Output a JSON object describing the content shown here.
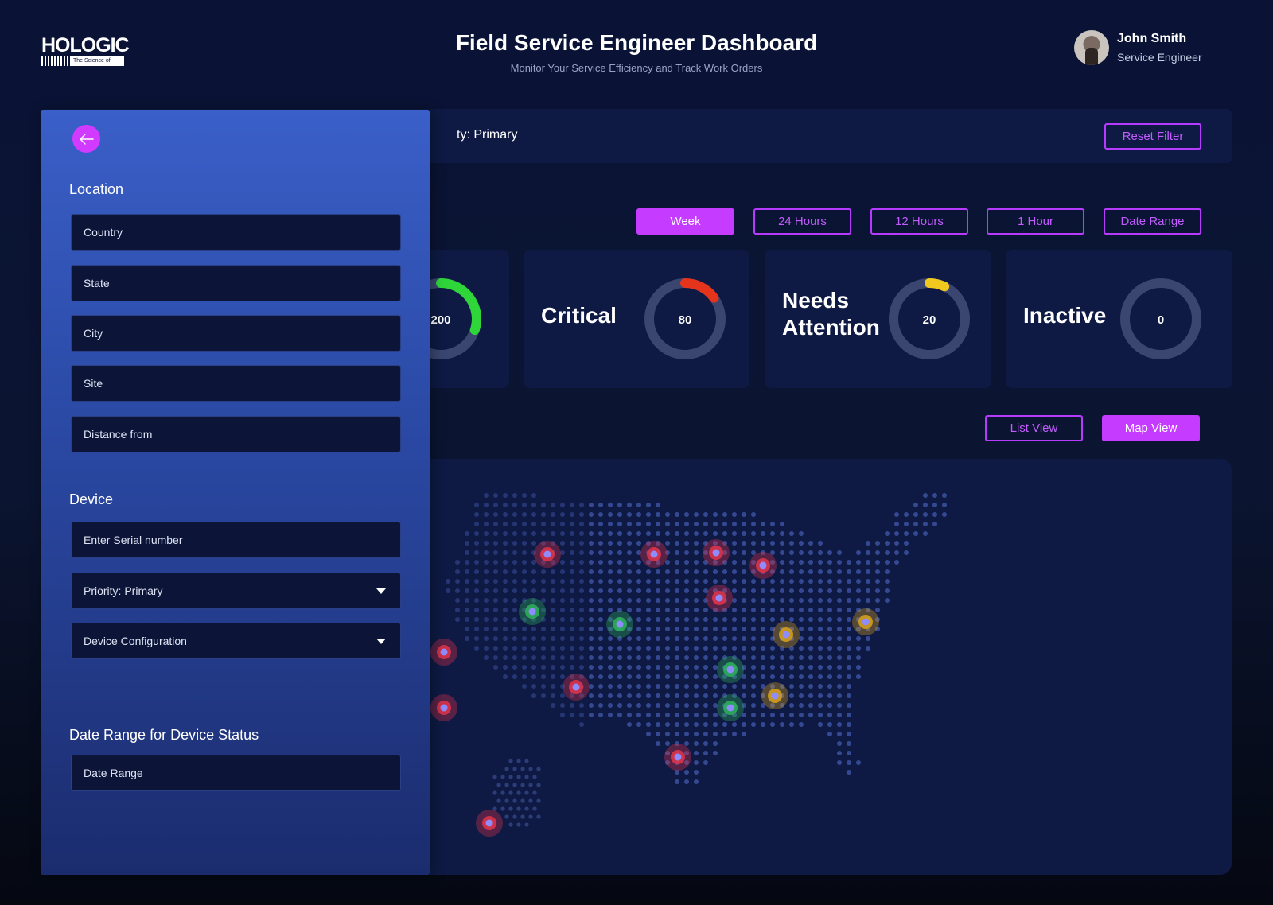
{
  "header": {
    "logo_text": "HOLOGIC",
    "logo_tagline": "The Science of Sure",
    "title": "Field Service Engineer Dashboard",
    "subtitle": "Monitor Your Service Efficiency and Track Work Orders"
  },
  "user": {
    "name": "John Smith",
    "role": "Service Engineer"
  },
  "filter_bar": {
    "applied_filter_text": "ty: Primary",
    "reset_label": "Reset Filter"
  },
  "time_filters": [
    {
      "label": "Week",
      "active": true
    },
    {
      "label": "24 Hours",
      "active": false
    },
    {
      "label": "12 Hours",
      "active": false
    },
    {
      "label": "1 Hour",
      "active": false
    },
    {
      "label": "Date Range",
      "active": false
    }
  ],
  "status_cards": [
    {
      "label": "",
      "value": "200",
      "fraction": 0.3,
      "color": "#2fd63a"
    },
    {
      "label": "Critical",
      "value": "80",
      "fraction": 0.15,
      "color": "#e4341c"
    },
    {
      "label": "Needs Attention",
      "value": "20",
      "fraction": 0.07,
      "color": "#f0c81e"
    },
    {
      "label": "Inactive",
      "value": "0",
      "fraction": 0,
      "color": "#f0c81e"
    }
  ],
  "view_toggle": {
    "list_label": "List View",
    "map_label": "Map View",
    "active": "map"
  },
  "map": {
    "marker_colors": {
      "critical": "#e0354a",
      "normal": "#2fb35a",
      "attention": "#d9a21c",
      "core": "#8f8cff"
    },
    "markers_by_status": {
      "critical": 11,
      "normal": 4,
      "attention": 3
    }
  },
  "drawer": {
    "back_icon": "arrow-left-icon",
    "location_title": "Location",
    "location_fields": [
      "Country",
      "State",
      "City",
      "Site",
      "Distance from"
    ],
    "device_title": "Device",
    "serial_placeholder": "Enter Serial number",
    "priority_select": "Priority: Primary",
    "config_select": "Device Configuration",
    "date_title": "Date Range for Device Status",
    "date_field": "Date Range"
  }
}
